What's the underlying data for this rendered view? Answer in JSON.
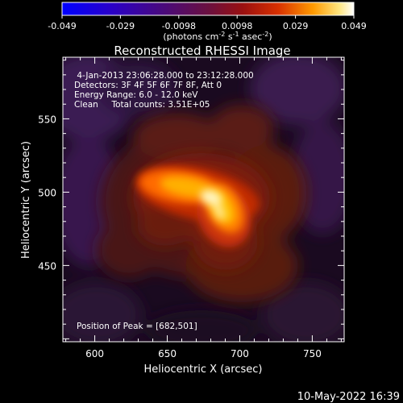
{
  "colorbar": {
    "ticks": [
      "-0.049",
      "-0.029",
      "-0.0098",
      "0.0098",
      "0.029",
      "0.049"
    ],
    "units_main": "(photons cm",
    "units_exp1": "-2",
    "units_mid": " s",
    "units_exp2": "-1",
    "units_tail": " asec",
    "units_exp3": "-2",
    "units_close": ")"
  },
  "plot": {
    "title": "Reconstructed RHESSI Image",
    "info_lines": [
      " 4-Jan-2013 23:06:28.000 to 23:12:28.000",
      "Detectors: 3F 4F 5F 6F 7F 8F, Att 0",
      "Energy Range: 6.0 - 12.0 keV",
      "Clean     Total counts: 3.51E+05"
    ],
    "peak_label": "Position of Peak = [682,501]",
    "date_stamp": "10-May-2022 16:39"
  },
  "chart_data": {
    "type": "heatmap",
    "title": "Reconstructed RHESSI Image",
    "xlabel": "Heliocentric X (arcsec)",
    "ylabel": "Heliocentric Y (arcsec)",
    "xlim": [
      578,
      772
    ],
    "ylim": [
      398,
      592
    ],
    "x_ticks": [
      "600",
      "650",
      "700",
      "750"
    ],
    "y_ticks": [
      "450",
      "500",
      "550"
    ],
    "x_tick_values": [
      600,
      650,
      700,
      750
    ],
    "y_tick_values": [
      450,
      500,
      550
    ],
    "colorbar_range": [
      -0.049,
      0.049
    ],
    "colormap": "hot/thermal",
    "peak": [
      682,
      501
    ],
    "colors": {
      "background": "#000000",
      "text": "#ffffff"
    }
  }
}
